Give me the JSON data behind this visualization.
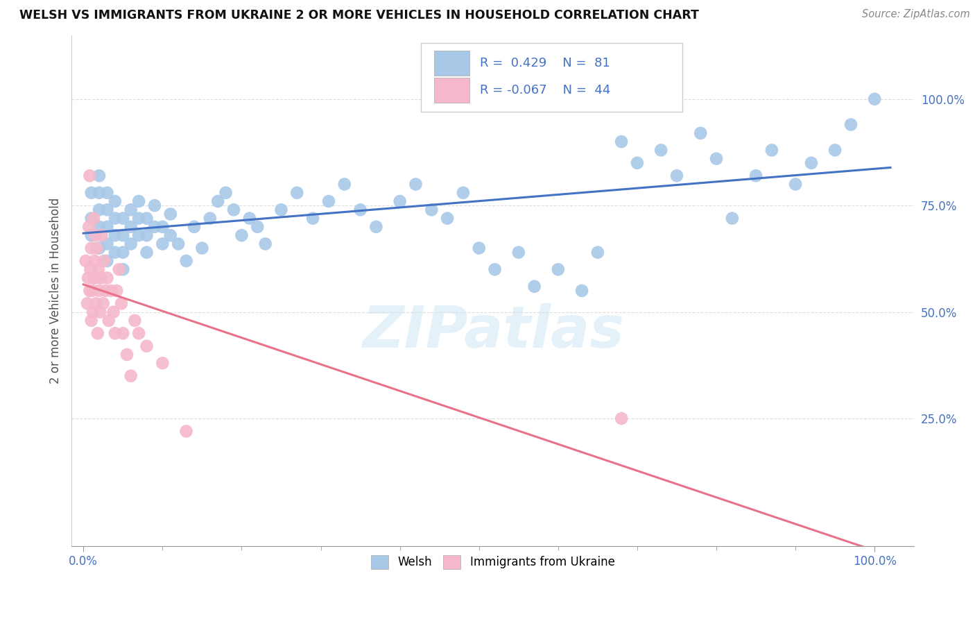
{
  "title": "WELSH VS IMMIGRANTS FROM UKRAINE 2 OR MORE VEHICLES IN HOUSEHOLD CORRELATION CHART",
  "source": "Source: ZipAtlas.com",
  "ylabel": "2 or more Vehicles in Household",
  "x_tick_labels_bottom": [
    "0.0%",
    "100.0%"
  ],
  "x_tick_vals_bottom": [
    0.0,
    1.0
  ],
  "y_tick_labels": [
    "25.0%",
    "50.0%",
    "75.0%",
    "100.0%"
  ],
  "y_tick_vals": [
    0.25,
    0.5,
    0.75,
    1.0
  ],
  "xlim": [
    -0.015,
    1.05
  ],
  "ylim": [
    -0.05,
    1.15
  ],
  "welsh_color": "#a8c8e8",
  "ukraine_color": "#f5b8cb",
  "welsh_line_color": "#4472c4",
  "ukraine_line_color": "#e8728a",
  "welsh_R": 0.429,
  "welsh_N": 81,
  "ukraine_R": -0.067,
  "ukraine_N": 44,
  "legend_label_welsh": "Welsh",
  "legend_label_ukraine": "Immigrants from Ukraine",
  "watermark": "ZIPatlas",
  "grid_color": "#dddddd",
  "welsh_scatter_x": [
    0.01,
    0.01,
    0.01,
    0.02,
    0.02,
    0.02,
    0.02,
    0.02,
    0.03,
    0.03,
    0.03,
    0.03,
    0.03,
    0.04,
    0.04,
    0.04,
    0.04,
    0.05,
    0.05,
    0.05,
    0.05,
    0.06,
    0.06,
    0.06,
    0.07,
    0.07,
    0.07,
    0.08,
    0.08,
    0.08,
    0.09,
    0.09,
    0.1,
    0.1,
    0.11,
    0.11,
    0.12,
    0.13,
    0.14,
    0.15,
    0.16,
    0.17,
    0.18,
    0.19,
    0.2,
    0.21,
    0.22,
    0.23,
    0.25,
    0.27,
    0.29,
    0.31,
    0.33,
    0.35,
    0.37,
    0.4,
    0.42,
    0.44,
    0.46,
    0.48,
    0.5,
    0.52,
    0.55,
    0.57,
    0.6,
    0.63,
    0.65,
    0.68,
    0.7,
    0.73,
    0.75,
    0.78,
    0.8,
    0.82,
    0.85,
    0.87,
    0.9,
    0.92,
    0.95,
    0.97,
    1.0
  ],
  "welsh_scatter_y": [
    0.68,
    0.72,
    0.78,
    0.65,
    0.7,
    0.74,
    0.78,
    0.82,
    0.62,
    0.66,
    0.7,
    0.74,
    0.78,
    0.64,
    0.68,
    0.72,
    0.76,
    0.6,
    0.64,
    0.68,
    0.72,
    0.66,
    0.7,
    0.74,
    0.68,
    0.72,
    0.76,
    0.64,
    0.68,
    0.72,
    0.7,
    0.75,
    0.66,
    0.7,
    0.68,
    0.73,
    0.66,
    0.62,
    0.7,
    0.65,
    0.72,
    0.76,
    0.78,
    0.74,
    0.68,
    0.72,
    0.7,
    0.66,
    0.74,
    0.78,
    0.72,
    0.76,
    0.8,
    0.74,
    0.7,
    0.76,
    0.8,
    0.74,
    0.72,
    0.78,
    0.65,
    0.6,
    0.64,
    0.56,
    0.6,
    0.55,
    0.64,
    0.9,
    0.85,
    0.88,
    0.82,
    0.92,
    0.86,
    0.72,
    0.82,
    0.88,
    0.8,
    0.85,
    0.88,
    0.94,
    1.0
  ],
  "ukraine_scatter_x": [
    0.003,
    0.005,
    0.006,
    0.007,
    0.008,
    0.008,
    0.009,
    0.01,
    0.01,
    0.011,
    0.012,
    0.013,
    0.013,
    0.014,
    0.015,
    0.015,
    0.016,
    0.017,
    0.018,
    0.019,
    0.02,
    0.021,
    0.022,
    0.023,
    0.025,
    0.026,
    0.028,
    0.03,
    0.032,
    0.035,
    0.038,
    0.04,
    0.042,
    0.045,
    0.048,
    0.05,
    0.055,
    0.06,
    0.065,
    0.07,
    0.08,
    0.1,
    0.13,
    0.68
  ],
  "ukraine_scatter_y": [
    0.62,
    0.52,
    0.58,
    0.7,
    0.55,
    0.82,
    0.6,
    0.65,
    0.48,
    0.55,
    0.5,
    0.58,
    0.72,
    0.62,
    0.58,
    0.68,
    0.52,
    0.65,
    0.45,
    0.6,
    0.55,
    0.5,
    0.58,
    0.68,
    0.52,
    0.62,
    0.55,
    0.58,
    0.48,
    0.55,
    0.5,
    0.45,
    0.55,
    0.6,
    0.52,
    0.45,
    0.4,
    0.35,
    0.48,
    0.45,
    0.42,
    0.38,
    0.22,
    0.25
  ]
}
